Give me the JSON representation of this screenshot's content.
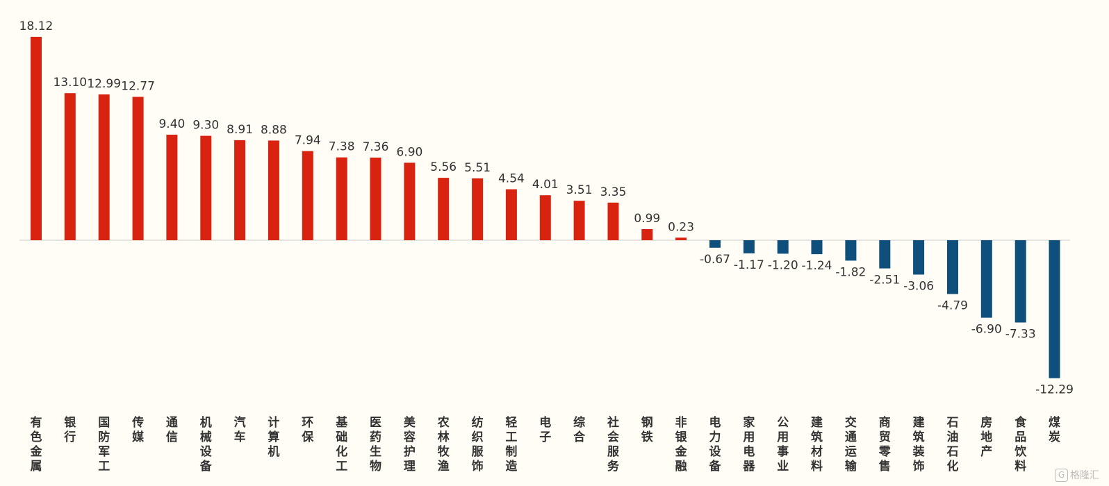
{
  "chart_data": {
    "type": "bar",
    "categories": [
      "有色金属",
      "银行",
      "国防军工",
      "传媒",
      "通信",
      "机械设备",
      "汽车",
      "计算机",
      "环保",
      "基础化工",
      "医药生物",
      "美容护理",
      "农林牧渔",
      "纺织服饰",
      "轻工制造",
      "电子",
      "综合",
      "社会服务",
      "钢铁",
      "非银金融",
      "电力设备",
      "家用电器",
      "公用事业",
      "建筑材料",
      "交通运输",
      "商贸零售",
      "建筑装饰",
      "石油石化",
      "房地产",
      "食品饮料",
      "煤炭"
    ],
    "values": [
      18.12,
      13.1,
      12.99,
      12.77,
      9.4,
      9.3,
      8.91,
      8.88,
      7.94,
      7.38,
      7.36,
      6.9,
      5.56,
      5.51,
      4.54,
      4.01,
      3.51,
      3.35,
      0.99,
      0.23,
      -0.67,
      -1.17,
      -1.2,
      -1.24,
      -1.82,
      -2.51,
      -3.06,
      -4.79,
      -6.9,
      -7.33,
      -12.29
    ],
    "value_labels": [
      "18.12",
      "13.10",
      "12.99",
      "12.77",
      "9.40",
      "9.30",
      "8.91",
      "8.88",
      "7.94",
      "7.38",
      "7.36",
      "6.90",
      "5.56",
      "5.51",
      "4.54",
      "4.01",
      "3.51",
      "3.35",
      "0.99",
      "0.23",
      "-0.67",
      "-1.17",
      "-1.20",
      "-1.24",
      "-1.82",
      "-2.51",
      "-3.06",
      "-4.79",
      "-6.90",
      "-7.33",
      "-12.29"
    ],
    "title": "",
    "xlabel": "",
    "ylabel": "",
    "ylim": [
      -12.29,
      18.12
    ],
    "grid": false,
    "colors": {
      "positive": "#d7230f",
      "negative": "#0e4f7c",
      "baseline": "#cccccc",
      "background": "#fffdf5"
    }
  },
  "watermark": {
    "icon": "G",
    "text": "格隆汇"
  }
}
